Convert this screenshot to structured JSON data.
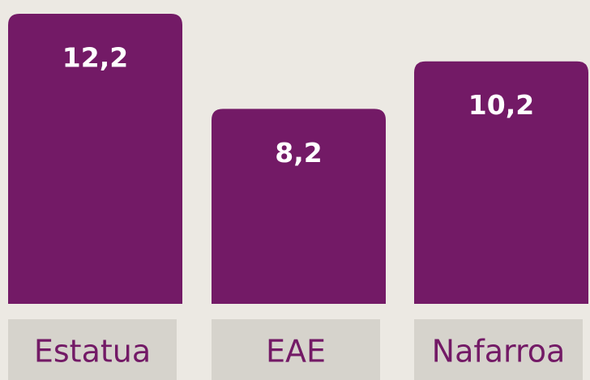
{
  "chart_data": {
    "type": "bar",
    "categories": [
      "Estatua",
      "EAE",
      "Nafarroa"
    ],
    "values": [
      12.2,
      8.2,
      10.2
    ],
    "value_labels": [
      "12,2",
      "8,2",
      "10,2"
    ],
    "color": "#731a66"
  }
}
